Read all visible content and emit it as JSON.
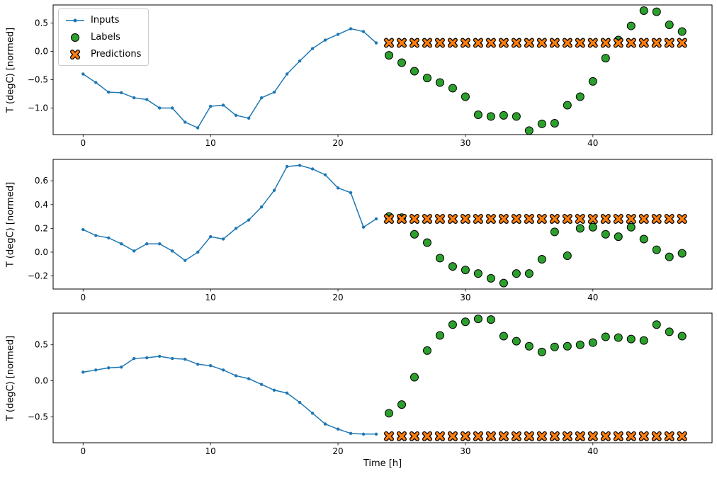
{
  "figure": {
    "background": "#ffffff",
    "legend": {
      "location": "upper left",
      "entries": [
        {
          "label": "Inputs",
          "marker": "line-with-dot",
          "color": "#1f77b4"
        },
        {
          "label": "Labels",
          "marker": "circle",
          "color": "#2ca02c",
          "edge": "#000000"
        },
        {
          "label": "Predictions",
          "marker": "X",
          "color": "#ff7f0e",
          "edge": "#000000"
        }
      ]
    }
  },
  "chart_data": [
    {
      "type": "line",
      "title": "",
      "xlabel": "",
      "ylabel": "T (degC) [normed]",
      "xlim": [
        -2.35,
        49.35
      ],
      "ylim": [
        -1.47,
        0.82
      ],
      "xticks": [
        0,
        10,
        20,
        30,
        40
      ],
      "yticks": [
        0.5,
        0.0,
        -0.5,
        -1.0
      ],
      "grid": false,
      "series": [
        {
          "name": "Inputs",
          "kind": "line",
          "marker": "dot",
          "color": "#1f77b4",
          "x": [
            0,
            1,
            2,
            3,
            4,
            5,
            6,
            7,
            8,
            9,
            10,
            11,
            12,
            13,
            14,
            15,
            16,
            17,
            18,
            19,
            20,
            21,
            22,
            23
          ],
          "y": [
            -0.4,
            -0.55,
            -0.72,
            -0.73,
            -0.82,
            -0.85,
            -1.0,
            -1.0,
            -1.25,
            -1.35,
            -0.97,
            -0.95,
            -1.13,
            -1.18,
            -0.82,
            -0.72,
            -0.4,
            -0.17,
            0.05,
            0.2,
            0.3,
            0.4,
            0.35,
            0.15
          ]
        },
        {
          "name": "Labels",
          "kind": "scatter",
          "marker": "circle",
          "color": "#2ca02c",
          "edgecolor": "#000000",
          "x": [
            24,
            25,
            26,
            27,
            28,
            29,
            30,
            31,
            32,
            33,
            34,
            35,
            36,
            37,
            38,
            39,
            40,
            41,
            42,
            43,
            44,
            45,
            46,
            47
          ],
          "y": [
            -0.07,
            -0.2,
            -0.35,
            -0.47,
            -0.55,
            -0.65,
            -0.8,
            -1.12,
            -1.15,
            -1.13,
            -1.15,
            -1.4,
            -1.28,
            -1.27,
            -0.95,
            -0.8,
            -0.53,
            -0.12,
            0.2,
            0.45,
            0.72,
            0.7,
            0.47,
            0.35
          ]
        },
        {
          "name": "Predictions",
          "kind": "scatter",
          "marker": "X",
          "color": "#ff7f0e",
          "edgecolor": "#000000",
          "x": [
            24,
            25,
            26,
            27,
            28,
            29,
            30,
            31,
            32,
            33,
            34,
            35,
            36,
            37,
            38,
            39,
            40,
            41,
            42,
            43,
            44,
            45,
            46,
            47
          ],
          "y": [
            0.15,
            0.15,
            0.15,
            0.15,
            0.15,
            0.15,
            0.15,
            0.15,
            0.15,
            0.15,
            0.15,
            0.15,
            0.15,
            0.15,
            0.15,
            0.15,
            0.15,
            0.15,
            0.15,
            0.15,
            0.15,
            0.15,
            0.15,
            0.15
          ]
        }
      ]
    },
    {
      "type": "line",
      "title": "",
      "xlabel": "",
      "ylabel": "T (degC) [normed]",
      "xlim": [
        -2.35,
        49.35
      ],
      "ylim": [
        -0.31,
        0.78
      ],
      "xticks": [
        0,
        10,
        20,
        30,
        40
      ],
      "yticks": [
        0.6,
        0.4,
        0.2,
        0.0,
        -0.2
      ],
      "grid": false,
      "series": [
        {
          "name": "Inputs",
          "kind": "line",
          "marker": "dot",
          "color": "#1f77b4",
          "x": [
            0,
            1,
            2,
            3,
            4,
            5,
            6,
            7,
            8,
            9,
            10,
            11,
            12,
            13,
            14,
            15,
            16,
            17,
            18,
            19,
            20,
            21,
            22,
            23
          ],
          "y": [
            0.19,
            0.14,
            0.12,
            0.07,
            0.01,
            0.07,
            0.07,
            0.01,
            -0.07,
            0.0,
            0.13,
            0.11,
            0.2,
            0.27,
            0.38,
            0.52,
            0.72,
            0.73,
            0.7,
            0.65,
            0.54,
            0.5,
            0.21,
            0.28
          ]
        },
        {
          "name": "Labels",
          "kind": "scatter",
          "marker": "circle",
          "color": "#2ca02c",
          "edgecolor": "#000000",
          "x": [
            24,
            25,
            26,
            27,
            28,
            29,
            30,
            31,
            32,
            33,
            34,
            35,
            36,
            37,
            38,
            39,
            40,
            41,
            42,
            43,
            44,
            45,
            46,
            47
          ],
          "y": [
            0.3,
            0.29,
            0.15,
            0.08,
            -0.05,
            -0.12,
            -0.15,
            -0.18,
            -0.22,
            -0.26,
            -0.18,
            -0.18,
            -0.06,
            0.17,
            -0.03,
            0.2,
            0.21,
            0.15,
            0.13,
            0.21,
            0.11,
            0.02,
            -0.04,
            -0.01
          ]
        },
        {
          "name": "Predictions",
          "kind": "scatter",
          "marker": "X",
          "color": "#ff7f0e",
          "edgecolor": "#000000",
          "x": [
            24,
            25,
            26,
            27,
            28,
            29,
            30,
            31,
            32,
            33,
            34,
            35,
            36,
            37,
            38,
            39,
            40,
            41,
            42,
            43,
            44,
            45,
            46,
            47
          ],
          "y": [
            0.28,
            0.28,
            0.28,
            0.28,
            0.28,
            0.28,
            0.28,
            0.28,
            0.28,
            0.28,
            0.28,
            0.28,
            0.28,
            0.28,
            0.28,
            0.28,
            0.28,
            0.28,
            0.28,
            0.28,
            0.28,
            0.28,
            0.28,
            0.28
          ]
        }
      ]
    },
    {
      "type": "line",
      "title": "",
      "xlabel": "Time [h]",
      "ylabel": "T (degC) [normed]",
      "xlim": [
        -2.35,
        49.35
      ],
      "ylim": [
        -0.86,
        0.94
      ],
      "xticks": [
        0,
        10,
        20,
        30,
        40
      ],
      "yticks": [
        0.5,
        0.0,
        -0.5
      ],
      "grid": false,
      "series": [
        {
          "name": "Inputs",
          "kind": "line",
          "marker": "dot",
          "color": "#1f77b4",
          "x": [
            0,
            1,
            2,
            3,
            4,
            5,
            6,
            7,
            8,
            9,
            10,
            11,
            12,
            13,
            14,
            15,
            16,
            17,
            18,
            19,
            20,
            21,
            22,
            23
          ],
          "y": [
            0.12,
            0.15,
            0.18,
            0.19,
            0.31,
            0.32,
            0.34,
            0.31,
            0.3,
            0.23,
            0.21,
            0.15,
            0.07,
            0.03,
            -0.05,
            -0.13,
            -0.17,
            -0.3,
            -0.45,
            -0.6,
            -0.67,
            -0.73,
            -0.74,
            -0.74
          ]
        },
        {
          "name": "Labels",
          "kind": "scatter",
          "marker": "circle",
          "color": "#2ca02c",
          "edgecolor": "#000000",
          "x": [
            24,
            25,
            26,
            27,
            28,
            29,
            30,
            31,
            32,
            33,
            34,
            35,
            36,
            37,
            38,
            39,
            40,
            41,
            42,
            43,
            44,
            45,
            46,
            47
          ],
          "y": [
            -0.45,
            -0.33,
            0.05,
            0.42,
            0.63,
            0.78,
            0.82,
            0.86,
            0.85,
            0.62,
            0.55,
            0.48,
            0.4,
            0.47,
            0.48,
            0.5,
            0.53,
            0.61,
            0.6,
            0.58,
            0.56,
            0.78,
            0.68,
            0.62
          ]
        },
        {
          "name": "Predictions",
          "kind": "scatter",
          "marker": "X",
          "color": "#ff7f0e",
          "edgecolor": "#000000",
          "x": [
            24,
            25,
            26,
            27,
            28,
            29,
            30,
            31,
            32,
            33,
            34,
            35,
            36,
            37,
            38,
            39,
            40,
            41,
            42,
            43,
            44,
            45,
            46,
            47
          ],
          "y": [
            -0.77,
            -0.77,
            -0.77,
            -0.77,
            -0.77,
            -0.77,
            -0.77,
            -0.77,
            -0.77,
            -0.77,
            -0.77,
            -0.77,
            -0.77,
            -0.77,
            -0.77,
            -0.77,
            -0.77,
            -0.77,
            -0.77,
            -0.77,
            -0.77,
            -0.77,
            -0.77,
            -0.77
          ]
        }
      ]
    }
  ]
}
